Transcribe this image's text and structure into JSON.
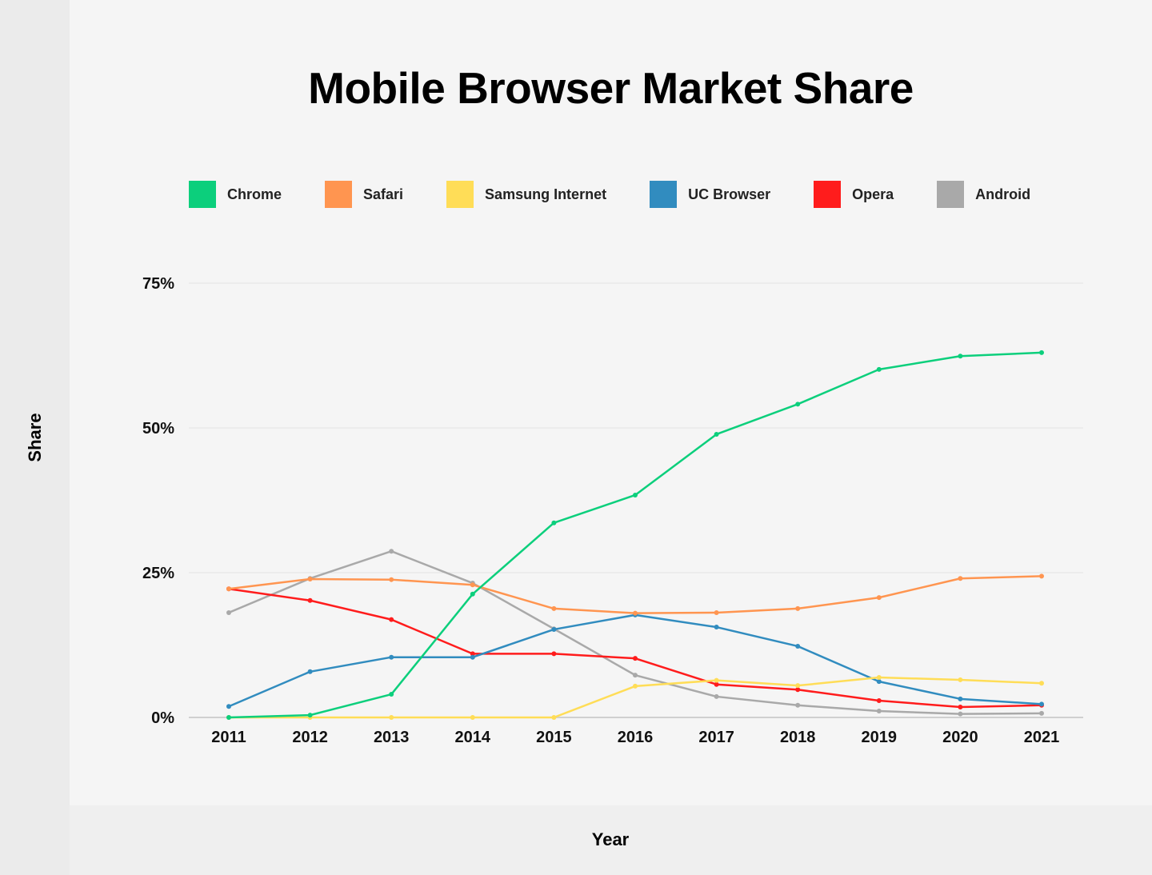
{
  "chart_data": {
    "type": "line",
    "title": "Mobile Browser Market Share",
    "xlabel": "Year",
    "ylabel": "Share",
    "x": [
      2011,
      2012,
      2013,
      2014,
      2015,
      2016,
      2017,
      2018,
      2019,
      2020,
      2021
    ],
    "x_tick_labels": [
      "2011",
      "2012",
      "2013",
      "2014",
      "2015",
      "2016",
      "2017",
      "2018",
      "2019",
      "2020",
      "2021"
    ],
    "y_ticks": [
      0,
      25,
      50,
      75
    ],
    "y_tick_labels": [
      "0%",
      "25%",
      "50%",
      "75%"
    ],
    "ylim": [
      0,
      75
    ],
    "grid": true,
    "legend_position": "top",
    "series": [
      {
        "name": "Chrome",
        "color": "#0ccf7c",
        "values": [
          0,
          0.4,
          4.0,
          21.3,
          33.6,
          38.4,
          48.9,
          54.1,
          60.1,
          62.4,
          63.0
        ]
      },
      {
        "name": "Safari",
        "color": "#ff9550",
        "values": [
          22.2,
          23.9,
          23.8,
          22.9,
          18.8,
          18.0,
          18.1,
          18.8,
          20.7,
          24.0,
          24.4
        ]
      },
      {
        "name": "Samsung Internet",
        "color": "#ffdd57",
        "values": [
          0,
          0,
          0,
          0,
          0,
          5.4,
          6.4,
          5.5,
          6.9,
          6.5,
          5.9
        ]
      },
      {
        "name": "UC Browser",
        "color": "#318cbf",
        "values": [
          1.9,
          7.9,
          10.4,
          10.4,
          15.2,
          17.7,
          15.6,
          12.3,
          6.2,
          3.2,
          2.3
        ]
      },
      {
        "name": "Opera",
        "color": "#ff1c1c",
        "values": [
          22.2,
          20.2,
          16.9,
          11.0,
          11.0,
          10.2,
          5.7,
          4.8,
          2.9,
          1.8,
          2.1
        ]
      },
      {
        "name": "Android",
        "color": "#a9a9a9",
        "values": [
          18.1,
          24.0,
          28.7,
          23.2,
          15.3,
          7.3,
          3.6,
          2.1,
          1.1,
          0.6,
          0.7
        ]
      }
    ]
  }
}
